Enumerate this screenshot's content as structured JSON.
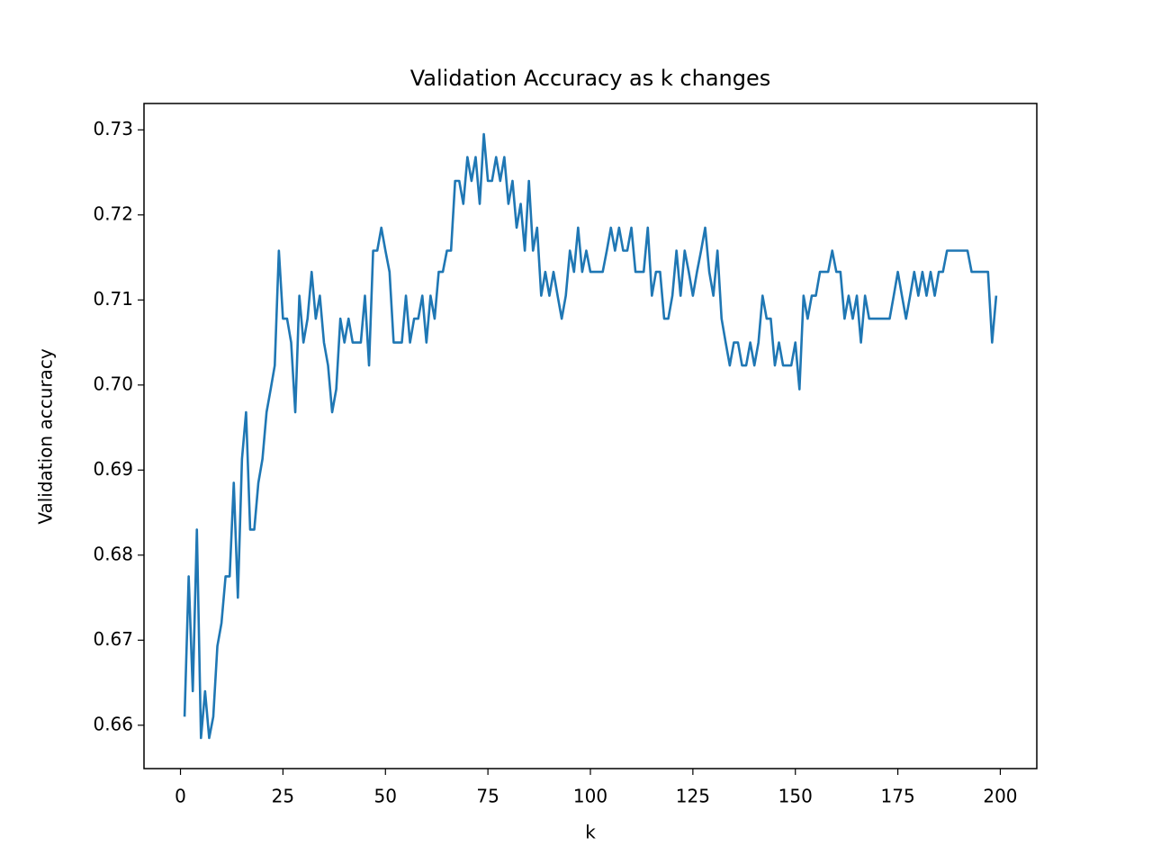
{
  "chart_data": {
    "type": "line",
    "title": "Validation Accuracy as k changes",
    "x_label": "k",
    "y_label": "Validation accuracy",
    "x": [
      1,
      2,
      3,
      4,
      5,
      6,
      7,
      8,
      9,
      10,
      11,
      12,
      13,
      14,
      15,
      16,
      17,
      18,
      19,
      20,
      21,
      22,
      23,
      24,
      25,
      26,
      27,
      28,
      29,
      30,
      31,
      32,
      33,
      34,
      35,
      36,
      37,
      38,
      39,
      40,
      41,
      42,
      43,
      44,
      45,
      46,
      47,
      48,
      49,
      50,
      51,
      52,
      53,
      54,
      55,
      56,
      57,
      58,
      59,
      60,
      61,
      62,
      63,
      64,
      65,
      66,
      67,
      68,
      69,
      70,
      71,
      72,
      73,
      74,
      75,
      76,
      77,
      78,
      79,
      80,
      81,
      82,
      83,
      84,
      85,
      86,
      87,
      88,
      89,
      90,
      91,
      92,
      93,
      94,
      95,
      96,
      97,
      98,
      99,
      100,
      101,
      102,
      103,
      104,
      105,
      106,
      107,
      108,
      109,
      110,
      111,
      112,
      113,
      114,
      115,
      116,
      117,
      118,
      119,
      120,
      121,
      122,
      123,
      124,
      125,
      126,
      127,
      128,
      129,
      130,
      131,
      132,
      133,
      134,
      135,
      136,
      137,
      138,
      139,
      140,
      141,
      142,
      143,
      144,
      145,
      146,
      147,
      148,
      149,
      150,
      151,
      152,
      153,
      154,
      155,
      156,
      157,
      158,
      159,
      160,
      161,
      162,
      163,
      164,
      165,
      166,
      167,
      168,
      169,
      170,
      171,
      172,
      173,
      174,
      175,
      176,
      177,
      178,
      179,
      180,
      181,
      182,
      183,
      184,
      185,
      186,
      187,
      188,
      189,
      190,
      191,
      192,
      193,
      194,
      195,
      196,
      197,
      198,
      199
    ],
    "series": [
      {
        "name": "Validation accuracy",
        "color": "#1f77b4",
        "values": [
          0.661,
          0.6775,
          0.664,
          0.683,
          0.6585,
          0.664,
          0.6585,
          0.661,
          0.6693,
          0.672,
          0.6775,
          0.6775,
          0.6885,
          0.675,
          0.6913,
          0.6968,
          0.683,
          0.683,
          0.6885,
          0.6913,
          0.6968,
          0.6995,
          0.7023,
          0.7158,
          0.7078,
          0.7078,
          0.705,
          0.6968,
          0.7105,
          0.705,
          0.7078,
          0.7133,
          0.7078,
          0.7105,
          0.705,
          0.7023,
          0.6968,
          0.6995,
          0.7078,
          0.705,
          0.7078,
          0.705,
          0.705,
          0.705,
          0.7105,
          0.7023,
          0.7158,
          0.7158,
          0.7185,
          0.7158,
          0.7133,
          0.705,
          0.705,
          0.705,
          0.7105,
          0.705,
          0.7078,
          0.7078,
          0.7105,
          0.705,
          0.7105,
          0.7078,
          0.7133,
          0.7133,
          0.7158,
          0.7158,
          0.724,
          0.724,
          0.7213,
          0.7268,
          0.724,
          0.7268,
          0.7213,
          0.7295,
          0.724,
          0.724,
          0.7268,
          0.724,
          0.7268,
          0.7213,
          0.724,
          0.7185,
          0.7213,
          0.7158,
          0.724,
          0.7158,
          0.7185,
          0.7105,
          0.7133,
          0.7105,
          0.7133,
          0.7105,
          0.7078,
          0.7105,
          0.7158,
          0.7133,
          0.7185,
          0.7133,
          0.7158,
          0.7133,
          0.7133,
          0.7133,
          0.7133,
          0.7158,
          0.7185,
          0.7158,
          0.7185,
          0.7158,
          0.7158,
          0.7185,
          0.7133,
          0.7133,
          0.7133,
          0.7185,
          0.7105,
          0.7133,
          0.7133,
          0.7078,
          0.7078,
          0.7105,
          0.7158,
          0.7105,
          0.7158,
          0.7133,
          0.7105,
          0.7133,
          0.7158,
          0.7185,
          0.7133,
          0.7105,
          0.7158,
          0.7078,
          0.705,
          0.7023,
          0.705,
          0.705,
          0.7023,
          0.7023,
          0.705,
          0.7023,
          0.705,
          0.7105,
          0.7078,
          0.7078,
          0.7023,
          0.705,
          0.7023,
          0.7023,
          0.7023,
          0.705,
          0.6995,
          0.7105,
          0.7078,
          0.7105,
          0.7105,
          0.7133,
          0.7133,
          0.7133,
          0.7158,
          0.7133,
          0.7133,
          0.7078,
          0.7105,
          0.7078,
          0.7105,
          0.705,
          0.7105,
          0.7078,
          0.7078,
          0.7078,
          0.7078,
          0.7078,
          0.7078,
          0.7105,
          0.7133,
          0.7105,
          0.7078,
          0.7105,
          0.7133,
          0.7105,
          0.7133,
          0.7105,
          0.7133,
          0.7105,
          0.7133,
          0.7133,
          0.7158,
          0.7158,
          0.7158,
          0.7158,
          0.7158,
          0.7158,
          0.7133,
          0.7133,
          0.7133,
          0.7133,
          0.7133,
          0.705,
          0.7105
        ]
      }
    ],
    "xlim": [
      -8.9,
      208.9
    ],
    "ylim": [
      0.6549,
      0.7331
    ],
    "xticks": [
      0,
      25,
      50,
      75,
      100,
      125,
      150,
      175,
      200
    ],
    "yticks": [
      0.66,
      0.67,
      0.68,
      0.69,
      {
        "value": 0.7,
        "label": "0.70"
      },
      0.71,
      0.72,
      0.73
    ]
  }
}
